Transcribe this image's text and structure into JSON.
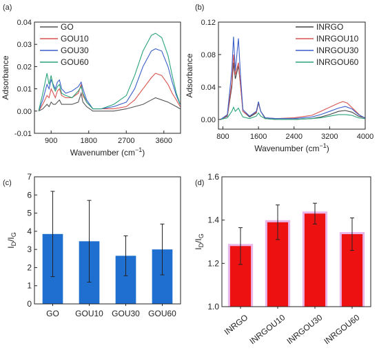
{
  "chart_data": [
    {
      "panel_label": "(a)",
      "type": "line",
      "xlabel": "Wavenumber (cm",
      "xlabel_sup": "−1",
      "xlabel_close": ")",
      "ylabel": "Adsorbance",
      "xlim": [
        500,
        4000
      ],
      "ylim": [
        -0.01,
        0.04
      ],
      "xticks": [
        900,
        1800,
        2700,
        3600
      ],
      "xtick_labels": [
        "900",
        "1800",
        "2700",
        "3600"
      ],
      "yticks": [
        -0.01,
        0.0,
        0.01,
        0.02,
        0.03,
        0.04
      ],
      "ytick_labels": [
        "-0.01",
        "0.00",
        "0.01",
        "0.02",
        "0.03",
        "0.04"
      ],
      "legend": "top-left",
      "series": [
        {
          "name": "GO",
          "color": "#555555",
          "points": [
            [
              600,
              0.0
            ],
            [
              700,
              0.001
            ],
            [
              800,
              0.003
            ],
            [
              850,
              0.002
            ],
            [
              900,
              0.004
            ],
            [
              950,
              0.003
            ],
            [
              1000,
              0.003
            ],
            [
              1050,
              0.004
            ],
            [
              1100,
              0.005
            ],
            [
              1150,
              0.003
            ],
            [
              1250,
              0.003
            ],
            [
              1400,
              0.003
            ],
            [
              1550,
              0.004
            ],
            [
              1620,
              0.008
            ],
            [
              1660,
              0.004
            ],
            [
              1750,
              0.002
            ],
            [
              1900,
              0.0
            ],
            [
              2100,
              0.0
            ],
            [
              2400,
              0.0
            ],
            [
              2700,
              0.001
            ],
            [
              2900,
              0.002
            ],
            [
              3100,
              0.003
            ],
            [
              3300,
              0.005
            ],
            [
              3400,
              0.006
            ],
            [
              3550,
              0.005
            ],
            [
              3700,
              0.004
            ],
            [
              3800,
              0.003
            ],
            [
              3900,
              0.002
            ],
            [
              3990,
              0.001
            ]
          ]
        },
        {
          "name": "GOU10",
          "color": "#d9534f",
          "points": [
            [
              600,
              0.0
            ],
            [
              700,
              0.003
            ],
            [
              800,
              0.007
            ],
            [
              850,
              0.006
            ],
            [
              900,
              0.01
            ],
            [
              950,
              0.008
            ],
            [
              1000,
              0.006
            ],
            [
              1050,
              0.009
            ],
            [
              1100,
              0.01
            ],
            [
              1150,
              0.007
            ],
            [
              1250,
              0.006
            ],
            [
              1400,
              0.006
            ],
            [
              1550,
              0.008
            ],
            [
              1620,
              0.012
            ],
            [
              1660,
              0.007
            ],
            [
              1750,
              0.004
            ],
            [
              1900,
              0.001
            ],
            [
              2100,
              0.001
            ],
            [
              2400,
              0.001
            ],
            [
              2700,
              0.002
            ],
            [
              2900,
              0.005
            ],
            [
              3100,
              0.01
            ],
            [
              3300,
              0.015
            ],
            [
              3400,
              0.017
            ],
            [
              3550,
              0.016
            ],
            [
              3700,
              0.012
            ],
            [
              3800,
              0.008
            ],
            [
              3900,
              0.005
            ],
            [
              3990,
              0.002
            ]
          ]
        },
        {
          "name": "GOU30",
          "color": "#3a5fc9",
          "points": [
            [
              600,
              0.0
            ],
            [
              700,
              0.005
            ],
            [
              800,
              0.012
            ],
            [
              850,
              0.01
            ],
            [
              900,
              0.014
            ],
            [
              950,
              0.012
            ],
            [
              1000,
              0.01
            ],
            [
              1050,
              0.013
            ],
            [
              1100,
              0.014
            ],
            [
              1150,
              0.01
            ],
            [
              1250,
              0.008
            ],
            [
              1400,
              0.009
            ],
            [
              1550,
              0.011
            ],
            [
              1620,
              0.013
            ],
            [
              1660,
              0.01
            ],
            [
              1750,
              0.005
            ],
            [
              1900,
              0.001
            ],
            [
              2100,
              0.001
            ],
            [
              2400,
              0.002
            ],
            [
              2700,
              0.004
            ],
            [
              2900,
              0.01
            ],
            [
              3100,
              0.02
            ],
            [
              3300,
              0.027
            ],
            [
              3400,
              0.028
            ],
            [
              3550,
              0.027
            ],
            [
              3700,
              0.02
            ],
            [
              3800,
              0.013
            ],
            [
              3900,
              0.007
            ],
            [
              3990,
              0.003
            ]
          ]
        },
        {
          "name": "GOU60",
          "color": "#2aa37a",
          "points": [
            [
              600,
              0.0
            ],
            [
              700,
              0.008
            ],
            [
              800,
              0.017
            ],
            [
              850,
              0.012
            ],
            [
              900,
              0.016
            ],
            [
              950,
              0.011
            ],
            [
              1000,
              0.009
            ],
            [
              1050,
              0.011
            ],
            [
              1100,
              0.012
            ],
            [
              1150,
              0.008
            ],
            [
              1250,
              0.007
            ],
            [
              1400,
              0.006
            ],
            [
              1550,
              0.009
            ],
            [
              1620,
              0.011
            ],
            [
              1660,
              0.008
            ],
            [
              1750,
              0.004
            ],
            [
              1900,
              0.001
            ],
            [
              2100,
              0.001
            ],
            [
              2400,
              0.003
            ],
            [
              2700,
              0.007
            ],
            [
              2900,
              0.016
            ],
            [
              3100,
              0.027
            ],
            [
              3300,
              0.034
            ],
            [
              3400,
              0.035
            ],
            [
              3550,
              0.033
            ],
            [
              3700,
              0.025
            ],
            [
              3800,
              0.016
            ],
            [
              3900,
              0.008
            ],
            [
              3990,
              0.003
            ]
          ]
        }
      ]
    },
    {
      "panel_label": "(b)",
      "type": "line",
      "xlabel": "Wavenumber (cm",
      "xlabel_sup": "−1",
      "xlabel_close": ")",
      "ylabel": "Adsorbance",
      "xlim": [
        700,
        4000
      ],
      "ylim": [
        -0.012,
        0.12
      ],
      "xticks": [
        800,
        1600,
        2400,
        3200,
        4000
      ],
      "xtick_labels": [
        "800",
        "1600",
        "2400",
        "3200",
        "4000"
      ],
      "yticks": [
        0.0,
        0.04,
        0.08,
        0.12
      ],
      "ytick_labels": [
        "0.00",
        "0.04",
        "0.08",
        "0.12"
      ],
      "legend": "top-right",
      "series": [
        {
          "name": "INRGO",
          "color": "#444444",
          "points": [
            [
              750,
              0.0
            ],
            [
              900,
              0.004
            ],
            [
              1000,
              0.04
            ],
            [
              1040,
              0.07
            ],
            [
              1080,
              0.05
            ],
            [
              1150,
              0.066
            ],
            [
              1200,
              0.04
            ],
            [
              1250,
              0.01
            ],
            [
              1400,
              0.003
            ],
            [
              1550,
              0.008
            ],
            [
              1600,
              0.02
            ],
            [
              1650,
              0.01
            ],
            [
              1750,
              0.001
            ],
            [
              2000,
              0.0
            ],
            [
              2400,
              0.0
            ],
            [
              2800,
              0.001
            ],
            [
              3000,
              0.003
            ],
            [
              3200,
              0.006
            ],
            [
              3400,
              0.01
            ],
            [
              3550,
              0.011
            ],
            [
              3700,
              0.009
            ],
            [
              3850,
              0.004
            ],
            [
              3990,
              0.002
            ]
          ]
        },
        {
          "name": "INRGOU10",
          "color": "#d9534f",
          "points": [
            [
              750,
              0.0
            ],
            [
              900,
              0.005
            ],
            [
              1000,
              0.045
            ],
            [
              1040,
              0.08
            ],
            [
              1080,
              0.055
            ],
            [
              1150,
              0.07
            ],
            [
              1200,
              0.04
            ],
            [
              1250,
              0.01
            ],
            [
              1400,
              0.004
            ],
            [
              1550,
              0.009
            ],
            [
              1600,
              0.021
            ],
            [
              1650,
              0.01
            ],
            [
              1750,
              0.002
            ],
            [
              2000,
              0.001
            ],
            [
              2400,
              0.002
            ],
            [
              2800,
              0.005
            ],
            [
              3000,
              0.01
            ],
            [
              3200,
              0.015
            ],
            [
              3400,
              0.02
            ],
            [
              3500,
              0.022
            ],
            [
              3600,
              0.02
            ],
            [
              3750,
              0.012
            ],
            [
              3900,
              0.004
            ],
            [
              3990,
              0.002
            ]
          ]
        },
        {
          "name": "INRGOU30",
          "color": "#3a5fc9",
          "points": [
            [
              750,
              0.0
            ],
            [
              900,
              0.006
            ],
            [
              1000,
              0.06
            ],
            [
              1040,
              0.102
            ],
            [
              1080,
              0.06
            ],
            [
              1150,
              0.1
            ],
            [
              1200,
              0.05
            ],
            [
              1250,
              0.012
            ],
            [
              1400,
              0.004
            ],
            [
              1550,
              0.01
            ],
            [
              1600,
              0.022
            ],
            [
              1650,
              0.01
            ],
            [
              1750,
              0.002
            ],
            [
              2000,
              0.001
            ],
            [
              2400,
              0.001
            ],
            [
              2800,
              0.003
            ],
            [
              3000,
              0.006
            ],
            [
              3200,
              0.01
            ],
            [
              3400,
              0.014
            ],
            [
              3550,
              0.016
            ],
            [
              3700,
              0.013
            ],
            [
              3850,
              0.006
            ],
            [
              3990,
              0.002
            ]
          ]
        },
        {
          "name": "INRGOU60",
          "color": "#2aa37a",
          "points": [
            [
              750,
              0.0
            ],
            [
              900,
              0.002
            ],
            [
              1000,
              0.01
            ],
            [
              1040,
              0.015
            ],
            [
              1080,
              0.01
            ],
            [
              1150,
              0.014
            ],
            [
              1200,
              0.008
            ],
            [
              1250,
              0.003
            ],
            [
              1400,
              0.001
            ],
            [
              1550,
              0.004
            ],
            [
              1600,
              0.008
            ],
            [
              1650,
              0.004
            ],
            [
              1750,
              0.001
            ],
            [
              2000,
              0.0
            ],
            [
              2400,
              0.0
            ],
            [
              2800,
              0.001
            ],
            [
              3000,
              0.002
            ],
            [
              3200,
              0.004
            ],
            [
              3400,
              0.006
            ],
            [
              3550,
              0.006
            ],
            [
              3700,
              0.005
            ],
            [
              3850,
              0.002
            ],
            [
              3990,
              0.001
            ]
          ]
        }
      ]
    },
    {
      "panel_label": "(c)",
      "type": "bar",
      "ylabel": "I",
      "ylabel_sub1": "D",
      "ylabel_mid": "/I",
      "ylabel_sub2": "G",
      "categories": [
        "GO",
        "GOU10",
        "GOU30",
        "GOU60"
      ],
      "values": [
        3.85,
        3.45,
        2.65,
        3.0
      ],
      "errors": [
        2.35,
        2.25,
        1.1,
        1.4
      ],
      "ylim": [
        0,
        7
      ],
      "yticks": [
        0,
        1,
        2,
        3,
        4,
        5,
        6,
        7
      ],
      "ytick_labels": [
        "0",
        "1",
        "2",
        "3",
        "4",
        "5",
        "6",
        "7"
      ],
      "bar_color": "#1f6fd1",
      "xlabel": ""
    },
    {
      "panel_label": "(d)",
      "type": "bar",
      "ylabel": "I",
      "ylabel_sub1": "D",
      "ylabel_mid": "/I",
      "ylabel_sub2": "G",
      "categories": [
        "INRGO",
        "INRGOU10",
        "INRGOU30",
        "INRGOU60"
      ],
      "values": [
        1.28,
        1.39,
        1.43,
        1.335
      ],
      "errors": [
        0.085,
        0.08,
        0.048,
        0.075
      ],
      "ylim": [
        1.0,
        1.6
      ],
      "yticks": [
        1.0,
        1.2,
        1.4,
        1.6
      ],
      "ytick_labels": [
        "1.0",
        "1.2",
        "1.4",
        "1.6"
      ],
      "bar_color": "#ee1111",
      "bar_glow": "#e9b7e9",
      "xlabel": ""
    }
  ]
}
